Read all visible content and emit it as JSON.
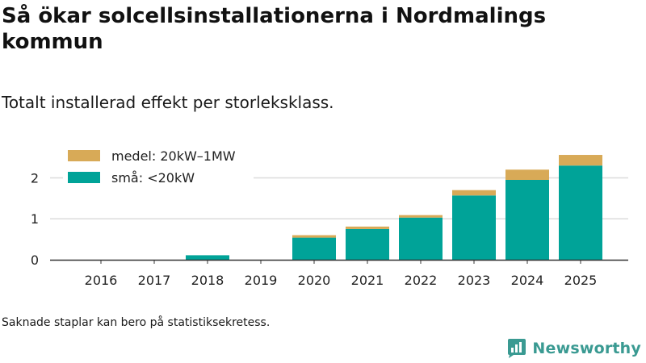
{
  "title": "Så ökar solcellsinstallationerna i Nordmalings kommun",
  "subtitle": "Totalt installerad effekt per storleksklass.",
  "footnote": "Saknade staplar kan bero på statistiksekretess.",
  "brand": {
    "name": "Newsworthy",
    "logo_icon": "bar-chart-badge-icon",
    "color": "#3a9a92"
  },
  "chart_data": {
    "type": "bar",
    "stacked": true,
    "title": "Så ökar solcellsinstallationerna i Nordmalings kommun",
    "subtitle": "Totalt installerad effekt per storleksklass.",
    "xlabel": "",
    "ylabel": "",
    "ylim": [
      0,
      2.6
    ],
    "yticks": [
      0,
      1,
      2
    ],
    "ytick_labels": [
      "0",
      "1",
      "2"
    ],
    "grid": true,
    "legend_position": "top-left",
    "categories": [
      "2016",
      "2017",
      "2018",
      "2019",
      "2020",
      "2021",
      "2022",
      "2023",
      "2024",
      "2025"
    ],
    "series": [
      {
        "name": "små: <20kW",
        "color": "#00a398",
        "values": [
          0,
          0,
          0.11,
          0,
          0.54,
          0.75,
          1.03,
          1.57,
          1.95,
          2.3
        ]
      },
      {
        "name": "medel: 20kW–1MW",
        "color": "#d8aa57",
        "values": [
          0,
          0,
          0,
          0,
          0.06,
          0.06,
          0.06,
          0.13,
          0.25,
          0.26
        ]
      }
    ],
    "legend_order": [
      1,
      0
    ]
  }
}
